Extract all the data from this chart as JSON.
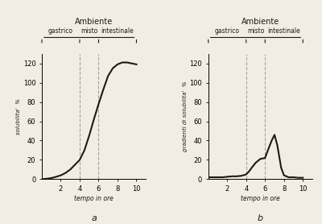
{
  "background_color": "#f2ede4",
  "fig_width": 4.0,
  "fig_height": 2.78,
  "chart_a": {
    "title": "Ambiente",
    "regions": [
      "gastrico",
      "misto",
      "intestinale"
    ],
    "vlines": [
      4,
      6
    ],
    "xlabel": "tempo in ore",
    "ylabel": "solubilita'  %",
    "label": "a",
    "xlim": [
      0,
      11
    ],
    "ylim": [
      0,
      130
    ],
    "xticks": [
      2,
      4,
      6,
      8,
      10
    ],
    "yticks": [
      0,
      20,
      40,
      60,
      80,
      100,
      120
    ],
    "curve_x": [
      0,
      0.3,
      0.6,
      1.0,
      1.5,
      2.0,
      2.5,
      3.0,
      3.5,
      4.0,
      4.5,
      5.0,
      5.5,
      6.0,
      6.5,
      7.0,
      7.5,
      8.0,
      8.5,
      9.0,
      9.5,
      10.0
    ],
    "curve_y": [
      0,
      0.3,
      0.6,
      1.2,
      2.5,
      4.0,
      6.5,
      10,
      15,
      20,
      30,
      45,
      62,
      78,
      93,
      107,
      115,
      119,
      121,
      121,
      120,
      119
    ]
  },
  "chart_b": {
    "title": "Ambiente",
    "regions": [
      "gastrico",
      "misto",
      "intestinale"
    ],
    "vlines": [
      4,
      6
    ],
    "xlabel": "tempo in ore",
    "ylabel": "gradienti di solubilita'  %",
    "label": "b",
    "xlim": [
      0,
      11
    ],
    "ylim": [
      0,
      130
    ],
    "xticks": [
      2,
      4,
      6,
      8,
      10
    ],
    "yticks": [
      0,
      20,
      40,
      60,
      80,
      100,
      120
    ],
    "curve_x": [
      0,
      0.5,
      1.0,
      1.5,
      2.0,
      2.5,
      3.0,
      3.5,
      4.0,
      4.3,
      4.6,
      5.0,
      5.5,
      6.0,
      6.3,
      6.7,
      7.0,
      7.3,
      7.7,
      8.0,
      8.5,
      9.0,
      9.5,
      10.0
    ],
    "curve_y": [
      2,
      2,
      2,
      2,
      2.5,
      3,
      3,
      3.5,
      5,
      8,
      12,
      17,
      21,
      22,
      30,
      40,
      46,
      35,
      12,
      4,
      2,
      2,
      1.5,
      1.5
    ]
  },
  "line_color": "#1a1a1a",
  "vline_color": "#999999",
  "text_color": "#1a1a1a",
  "bracket_color": "#1a1a1a"
}
